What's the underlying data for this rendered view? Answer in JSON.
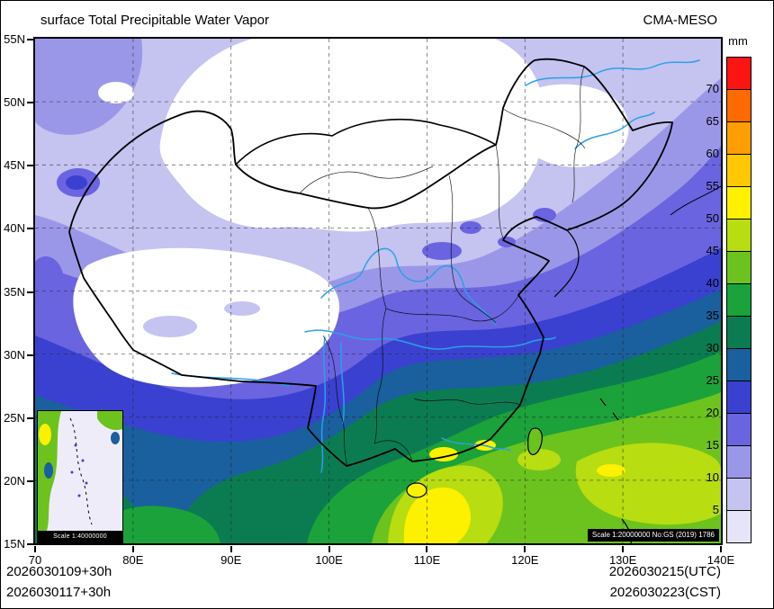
{
  "header": {
    "title": "surface Total Precipitable Water Vapor",
    "model": "CMA-MESO"
  },
  "colorbar": {
    "unit": "mm",
    "labels": [
      "70",
      "65",
      "60",
      "55",
      "50",
      "45",
      "40",
      "35",
      "30",
      "25",
      "20",
      "15",
      "10",
      "5"
    ],
    "colors": [
      "#fb1412",
      "#ff6a00",
      "#ff9e00",
      "#ffc800",
      "#fdf100",
      "#b8dd10",
      "#6cc31e",
      "#1ba23a",
      "#0b7c52",
      "#1a5f9e",
      "#3a41d0",
      "#6a64e0",
      "#9b97e8",
      "#c5c3f0",
      "#e6e4f8"
    ]
  },
  "axes": {
    "lat": [
      "55N",
      "50N",
      "45N",
      "40N",
      "35N",
      "30N",
      "25N",
      "20N",
      "15N"
    ],
    "lon": [
      "70",
      "80E",
      "90E",
      "100E",
      "110E",
      "120E",
      "130E",
      "140E"
    ]
  },
  "inset": {
    "scale": "Scale 1:40000000"
  },
  "map_note": "Scale 1:20000000 No:GS (2019) 1786",
  "footer": {
    "init_utc": "2026030109+30h",
    "init_cst": "2026030117+30h",
    "valid_utc": "2026030215(UTC)",
    "valid_cst": "2026030223(CST)"
  }
}
